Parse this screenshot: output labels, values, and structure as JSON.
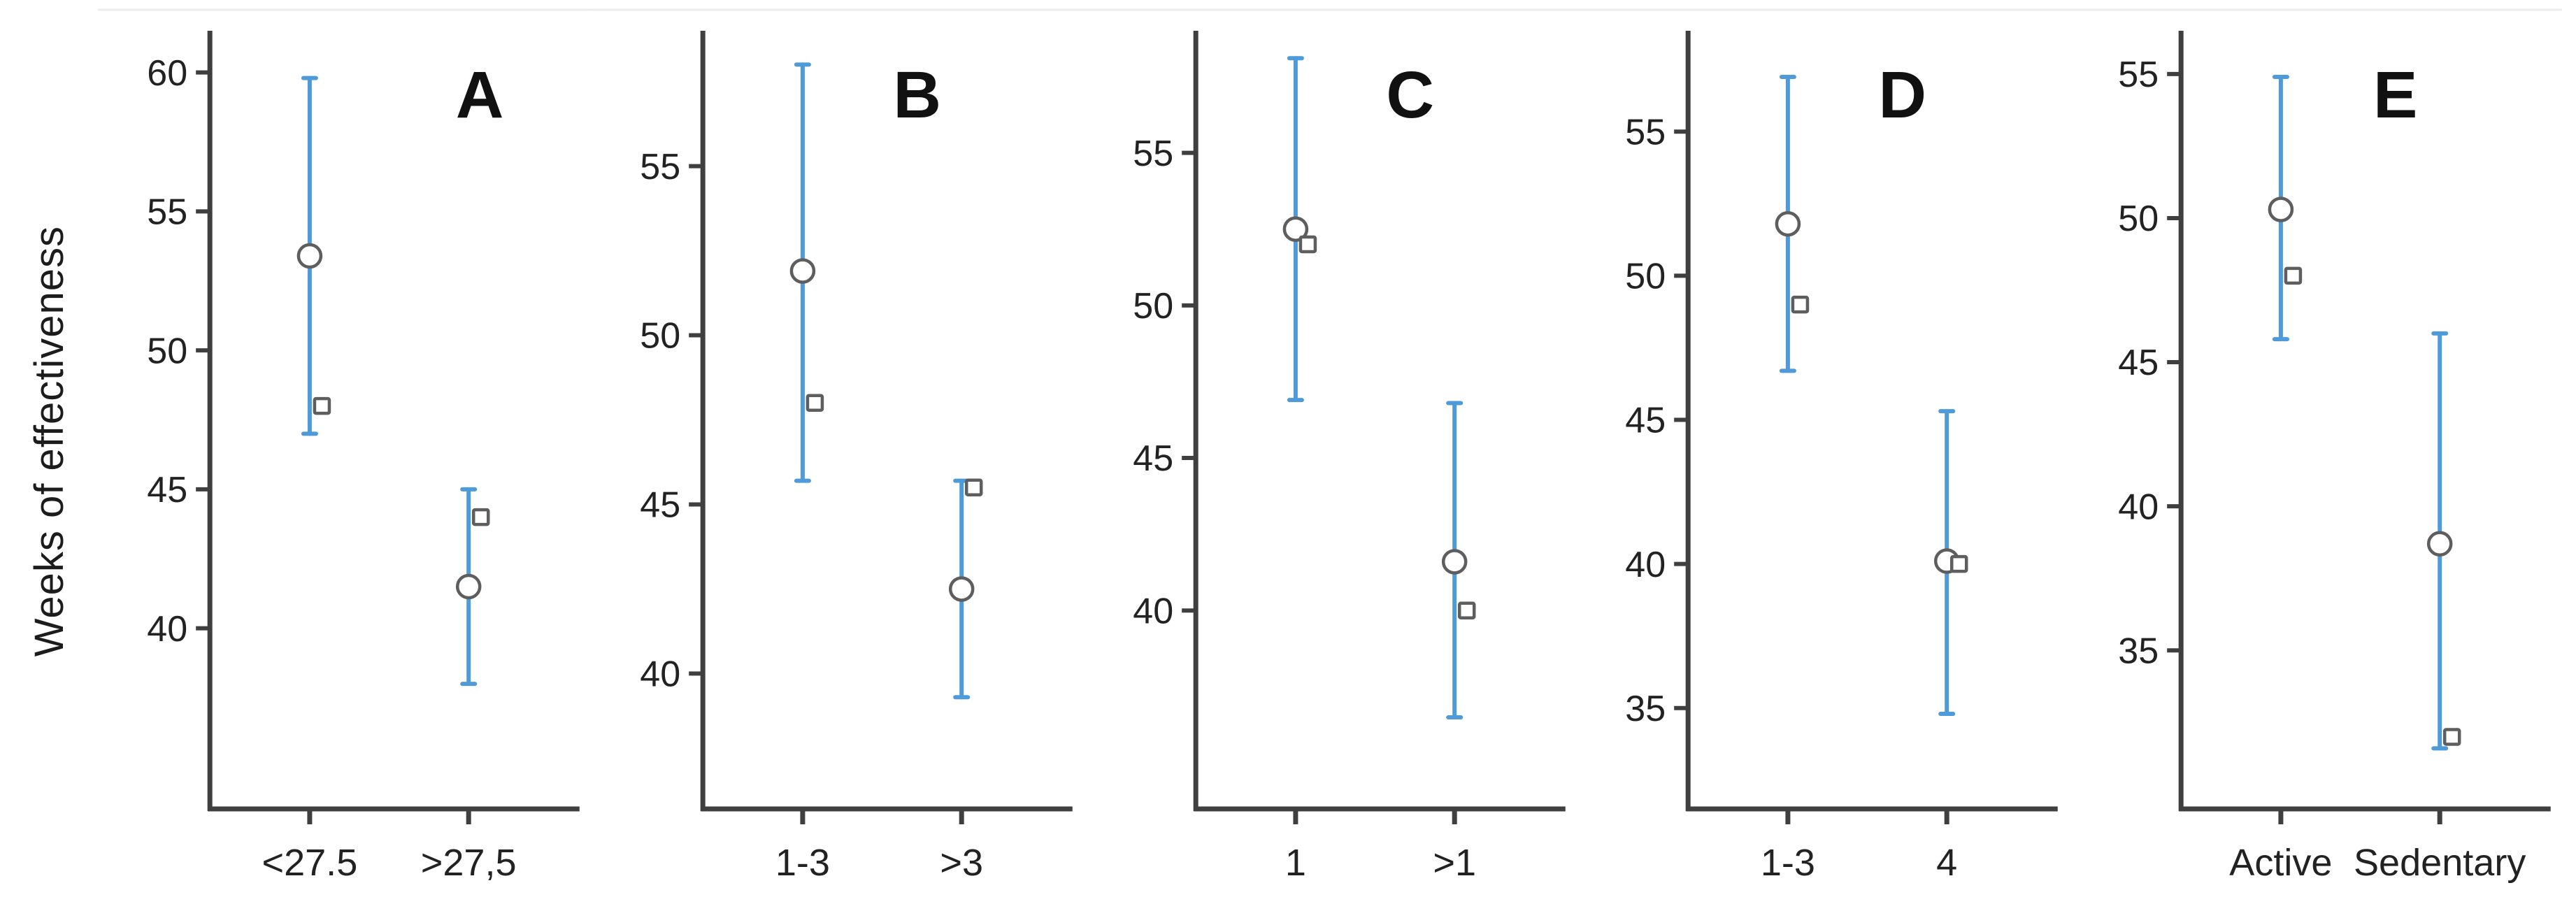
{
  "figure": {
    "y_axis_label": "Weeks of effectiveness",
    "colors": {
      "error_bar": "#4f9bd9",
      "marker_outline": "#5e5e5e",
      "axis": "#3f3f3f",
      "text": "#222222",
      "panel_top_border": "#ececec"
    }
  },
  "chart_data": [
    {
      "type": "scatter",
      "panel_label": "A",
      "categories": [
        "<27.5",
        ">27,5"
      ],
      "ylim": [
        33.5,
        61.5
      ],
      "yticks": [
        40,
        45,
        50,
        55,
        60
      ],
      "grid": false,
      "series": [
        {
          "name": "point-estimate-circle",
          "marker": "circle",
          "values": [
            53.4,
            41.5
          ]
        },
        {
          "name": "secondary-estimate-square",
          "marker": "square",
          "values": [
            48.0,
            44.0
          ]
        }
      ],
      "ci": [
        [
          47.0,
          59.8
        ],
        [
          38.0,
          45.0
        ]
      ]
    },
    {
      "type": "scatter",
      "panel_label": "B",
      "categories": [
        "1-3",
        ">3"
      ],
      "ylim": [
        36.0,
        59.0
      ],
      "yticks": [
        40,
        45,
        50,
        55
      ],
      "grid": false,
      "series": [
        {
          "name": "point-estimate-circle",
          "marker": "circle",
          "values": [
            51.9,
            42.5
          ]
        },
        {
          "name": "secondary-estimate-square",
          "marker": "square",
          "values": [
            48.0,
            45.5
          ]
        }
      ],
      "ci": [
        [
          45.7,
          58.0
        ],
        [
          39.3,
          45.7
        ]
      ]
    },
    {
      "type": "scatter",
      "panel_label": "C",
      "categories": [
        "1",
        ">1"
      ],
      "ylim": [
        33.5,
        59.0
      ],
      "yticks": [
        40,
        45,
        50,
        55
      ],
      "grid": false,
      "series": [
        {
          "name": "point-estimate-circle",
          "marker": "circle",
          "values": [
            52.5,
            41.6
          ]
        },
        {
          "name": "secondary-estimate-square",
          "marker": "square",
          "values": [
            52.0,
            40.0
          ]
        }
      ],
      "ci": [
        [
          46.9,
          58.1
        ],
        [
          36.5,
          46.8
        ]
      ]
    },
    {
      "type": "scatter",
      "panel_label": "D",
      "categories": [
        "1-3",
        "4"
      ],
      "ylim": [
        31.5,
        58.5
      ],
      "yticks": [
        35,
        40,
        45,
        50,
        55
      ],
      "grid": false,
      "series": [
        {
          "name": "point-estimate-circle",
          "marker": "circle",
          "values": [
            51.8,
            40.1
          ]
        },
        {
          "name": "secondary-estimate-square",
          "marker": "square",
          "values": [
            49.0,
            40.0
          ]
        }
      ],
      "ci": [
        [
          46.7,
          56.9
        ],
        [
          34.8,
          45.3
        ]
      ]
    },
    {
      "type": "scatter",
      "panel_label": "E",
      "categories": [
        "Active",
        "Sedentary"
      ],
      "ylim": [
        29.5,
        56.5
      ],
      "yticks": [
        35,
        40,
        45,
        50,
        55
      ],
      "grid": false,
      "series": [
        {
          "name": "point-estimate-circle",
          "marker": "circle",
          "values": [
            50.3,
            38.7
          ]
        },
        {
          "name": "secondary-estimate-square",
          "marker": "square",
          "values": [
            48.0,
            32.0
          ]
        }
      ],
      "ci": [
        [
          45.8,
          54.9
        ],
        [
          31.6,
          46.0
        ]
      ]
    }
  ]
}
